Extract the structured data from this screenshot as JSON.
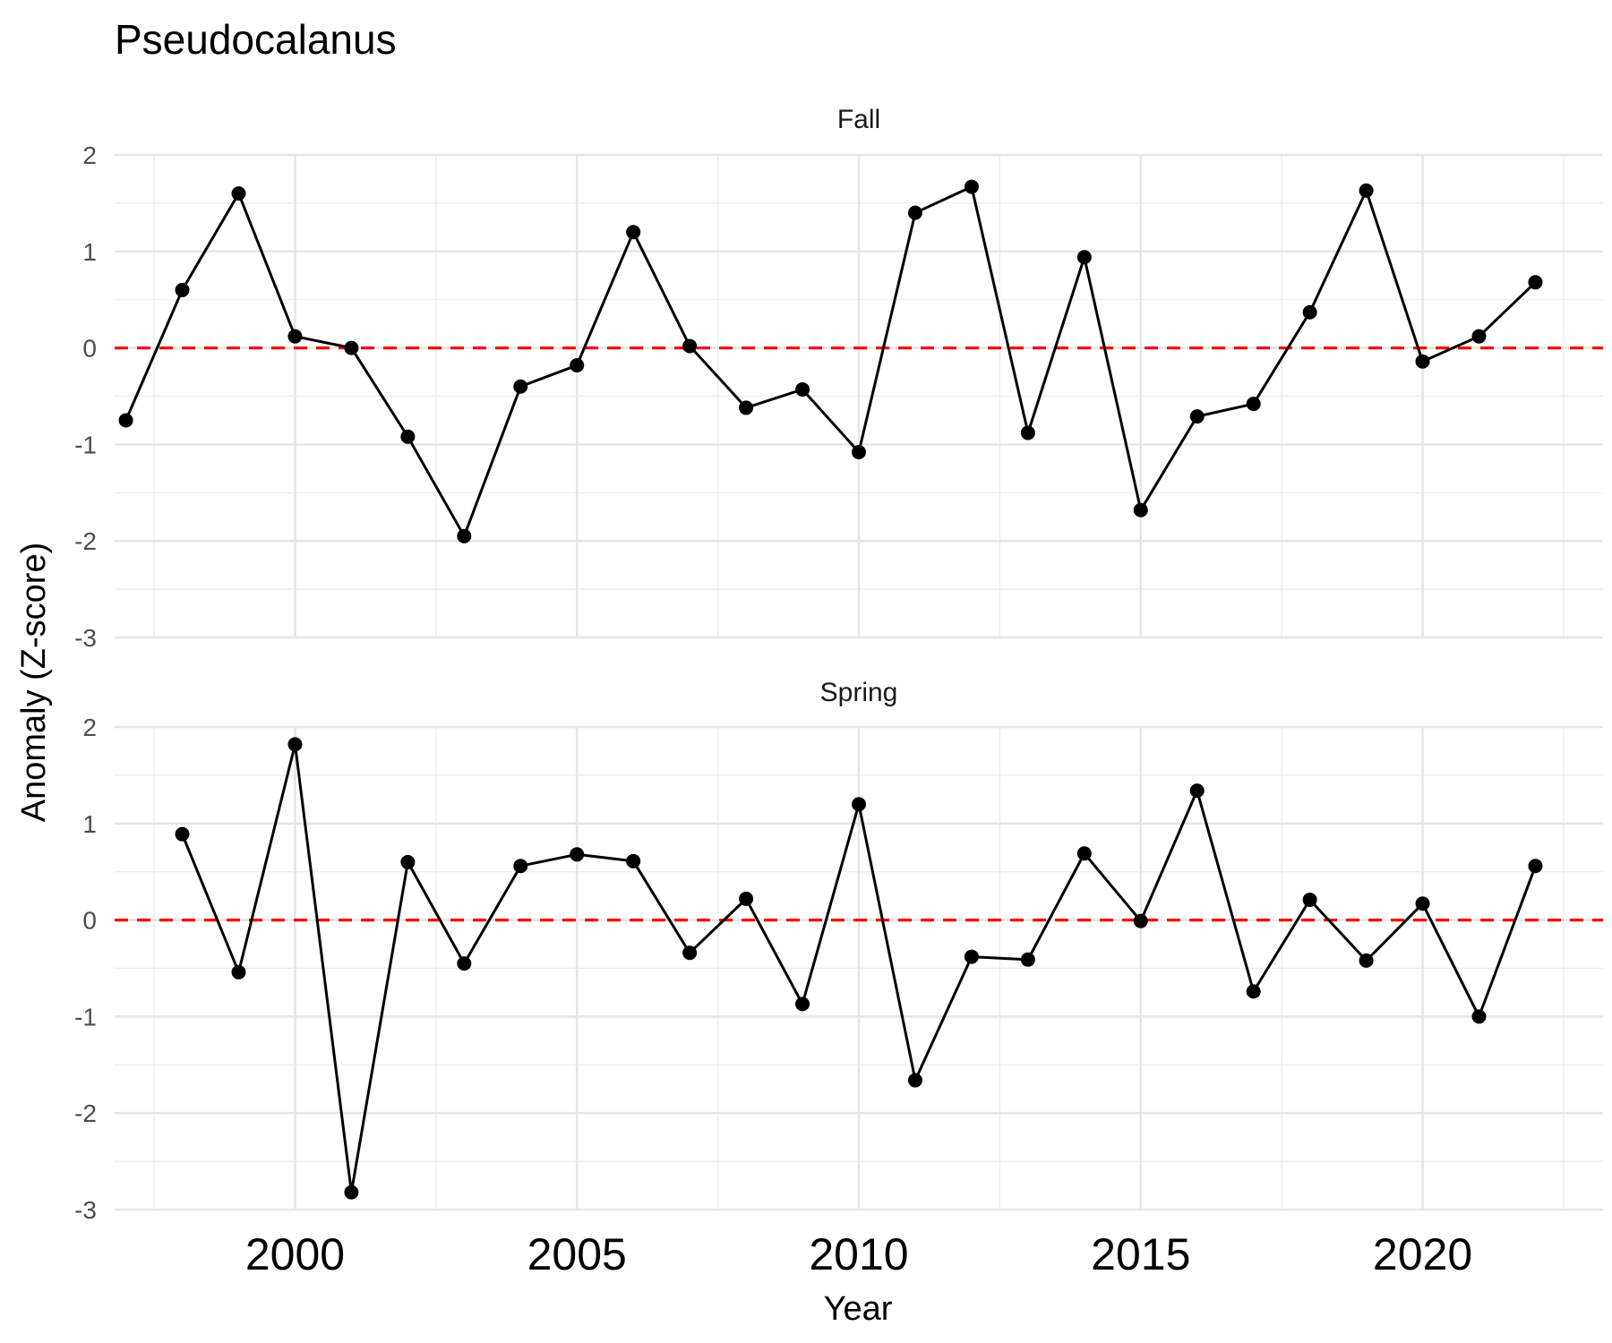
{
  "chart_data": {
    "type": "line",
    "title": "Pseudocalanus",
    "xlabel": "Year",
    "ylabel": "Anomaly (Z-score)",
    "xlim": [
      1996.8,
      2023.2
    ],
    "ylim": [
      -3,
      2
    ],
    "x_ticks": [
      "2000",
      "2005",
      "2010",
      "2015",
      "2020"
    ],
    "y_ticks": [
      "2",
      "1",
      "0",
      "-1",
      "-2",
      "-3"
    ],
    "reference_line": {
      "y": 0,
      "color": "#ff0000",
      "style": "dashed"
    },
    "series_color": "#000000",
    "grid": true,
    "panels": [
      {
        "name": "Fall",
        "x": [
          1997,
          1998,
          1999,
          2000,
          2001,
          2002,
          2003,
          2004,
          2005,
          2006,
          2007,
          2008,
          2009,
          2010,
          2011,
          2012,
          2013,
          2014,
          2015,
          2016,
          2017,
          2018,
          2019,
          2020,
          2021,
          2022
        ],
        "y": [
          -0.75,
          0.6,
          1.6,
          0.12,
          0.0,
          -0.92,
          -1.95,
          -0.4,
          -0.18,
          1.2,
          0.02,
          -0.62,
          -0.43,
          -1.08,
          1.4,
          1.67,
          -0.88,
          0.94,
          -1.68,
          -0.71,
          -0.58,
          0.37,
          1.63,
          -0.14,
          0.12,
          0.68
        ]
      },
      {
        "name": "Spring",
        "x": [
          1998,
          1999,
          2000,
          2001,
          2002,
          2003,
          2004,
          2005,
          2006,
          2007,
          2008,
          2009,
          2010,
          2011,
          2012,
          2013,
          2014,
          2015,
          2016,
          2017,
          2018,
          2019,
          2020,
          2021,
          2022
        ],
        "y": [
          0.89,
          -0.54,
          1.82,
          -2.82,
          0.6,
          -0.45,
          0.56,
          0.68,
          0.61,
          -0.34,
          0.22,
          -0.87,
          1.2,
          -1.66,
          -0.38,
          -0.41,
          0.69,
          -0.01,
          1.34,
          -0.74,
          0.21,
          -0.42,
          0.17,
          -1.0,
          0.56
        ]
      }
    ]
  }
}
